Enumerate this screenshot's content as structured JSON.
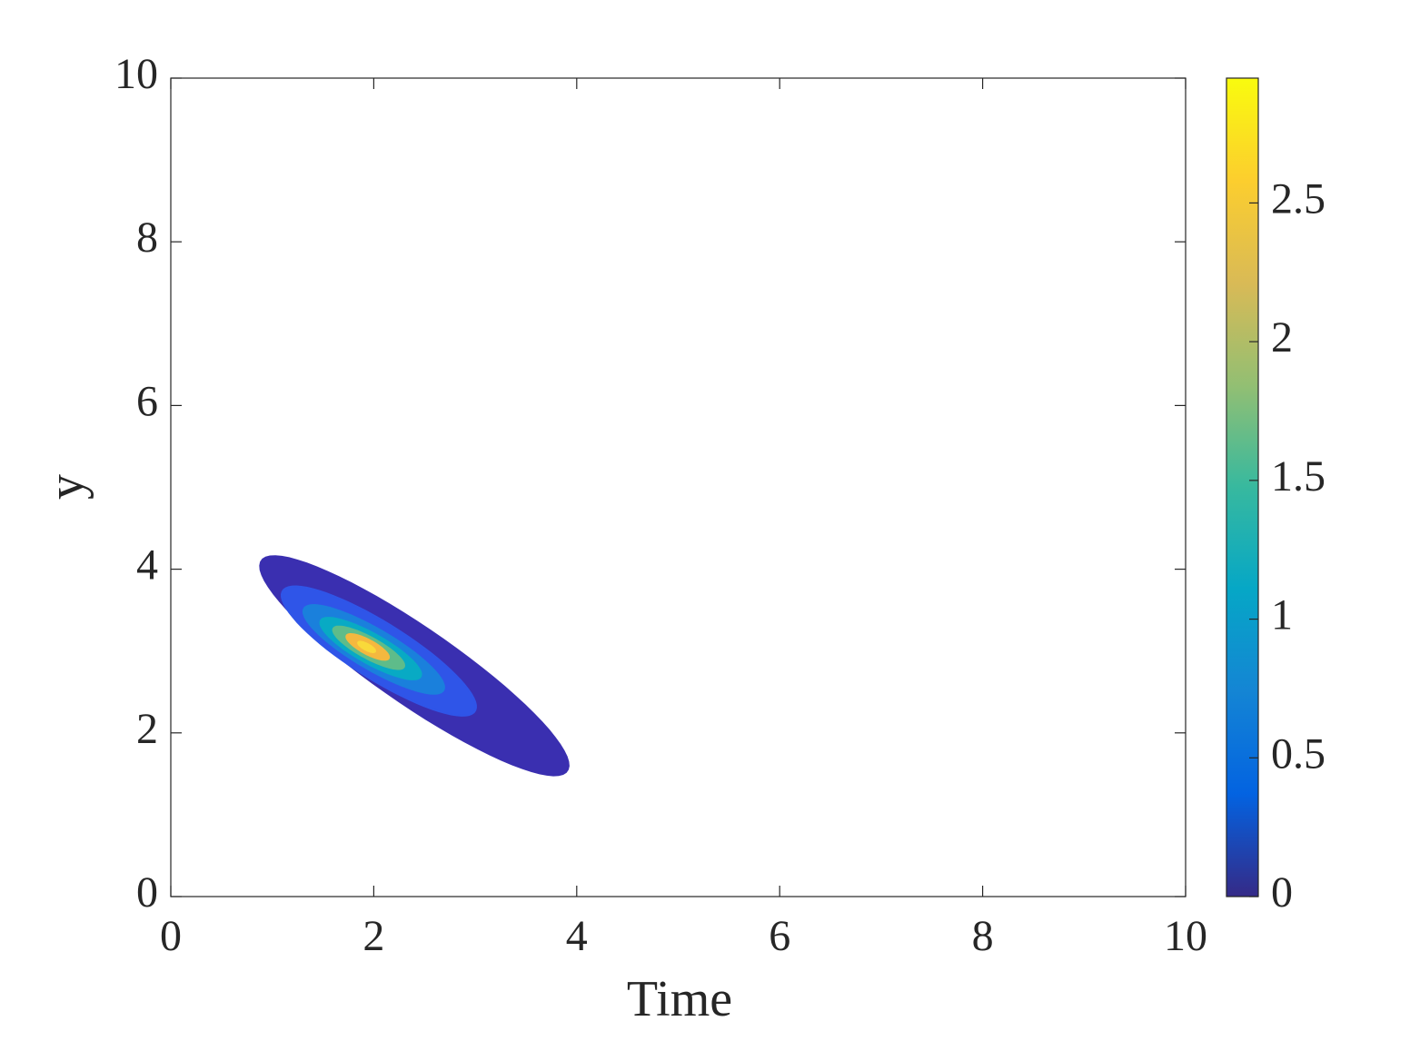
{
  "chart_data": {
    "type": "contourf",
    "xlabel": "Time",
    "ylabel": "y",
    "xlim": [
      0,
      10
    ],
    "ylim": [
      0,
      10
    ],
    "xticks": [
      0,
      2,
      4,
      6,
      8,
      10
    ],
    "yticks": [
      0,
      2,
      4,
      6,
      8,
      10
    ],
    "contours": [
      {
        "level": 0.1,
        "color": "#3a2fb0",
        "center": [
          2.4,
          2.82
        ],
        "major": 1.98,
        "minor": 0.43,
        "slope": -0.87
      },
      {
        "level": 0.5,
        "color": "#2f55e8",
        "center": [
          2.05,
          3.0
        ],
        "major": 1.2,
        "minor": 0.32,
        "slope": -0.8
      },
      {
        "level": 1.0,
        "color": "#1a80dc",
        "center": [
          2.0,
          3.02
        ],
        "major": 0.85,
        "minor": 0.23,
        "slope": -0.75
      },
      {
        "level": 1.5,
        "color": "#08aac4",
        "center": [
          1.97,
          3.03
        ],
        "major": 0.6,
        "minor": 0.17,
        "slope": -0.72
      },
      {
        "level": 2.0,
        "color": "#5ebc8a",
        "center": [
          1.95,
          3.04
        ],
        "major": 0.42,
        "minor": 0.12,
        "slope": -0.7
      },
      {
        "level": 2.5,
        "color": "#f4b83f",
        "center": [
          1.94,
          3.05
        ],
        "major": 0.25,
        "minor": 0.08,
        "slope": -0.7
      },
      {
        "level": 2.8,
        "color": "#f9d93a",
        "center": [
          1.93,
          3.05
        ],
        "major": 0.1,
        "minor": 0.035,
        "slope": -0.7
      }
    ],
    "clim": [
      0,
      2.95
    ],
    "cticks": [
      0,
      0.5,
      1,
      1.5,
      2,
      2.5
    ],
    "colormap": [
      {
        "value": 0,
        "color": "#352a87"
      },
      {
        "value": 0.37,
        "color": "#0363e1"
      },
      {
        "value": 0.74,
        "color": "#1485d4"
      },
      {
        "value": 1.11,
        "color": "#06a7c6"
      },
      {
        "value": 1.48,
        "color": "#38b99e"
      },
      {
        "value": 1.84,
        "color": "#92bf73"
      },
      {
        "value": 2.21,
        "color": "#d9ba56"
      },
      {
        "value": 2.58,
        "color": "#fcce2e"
      },
      {
        "value": 2.95,
        "color": "#f9fb0e"
      }
    ]
  }
}
